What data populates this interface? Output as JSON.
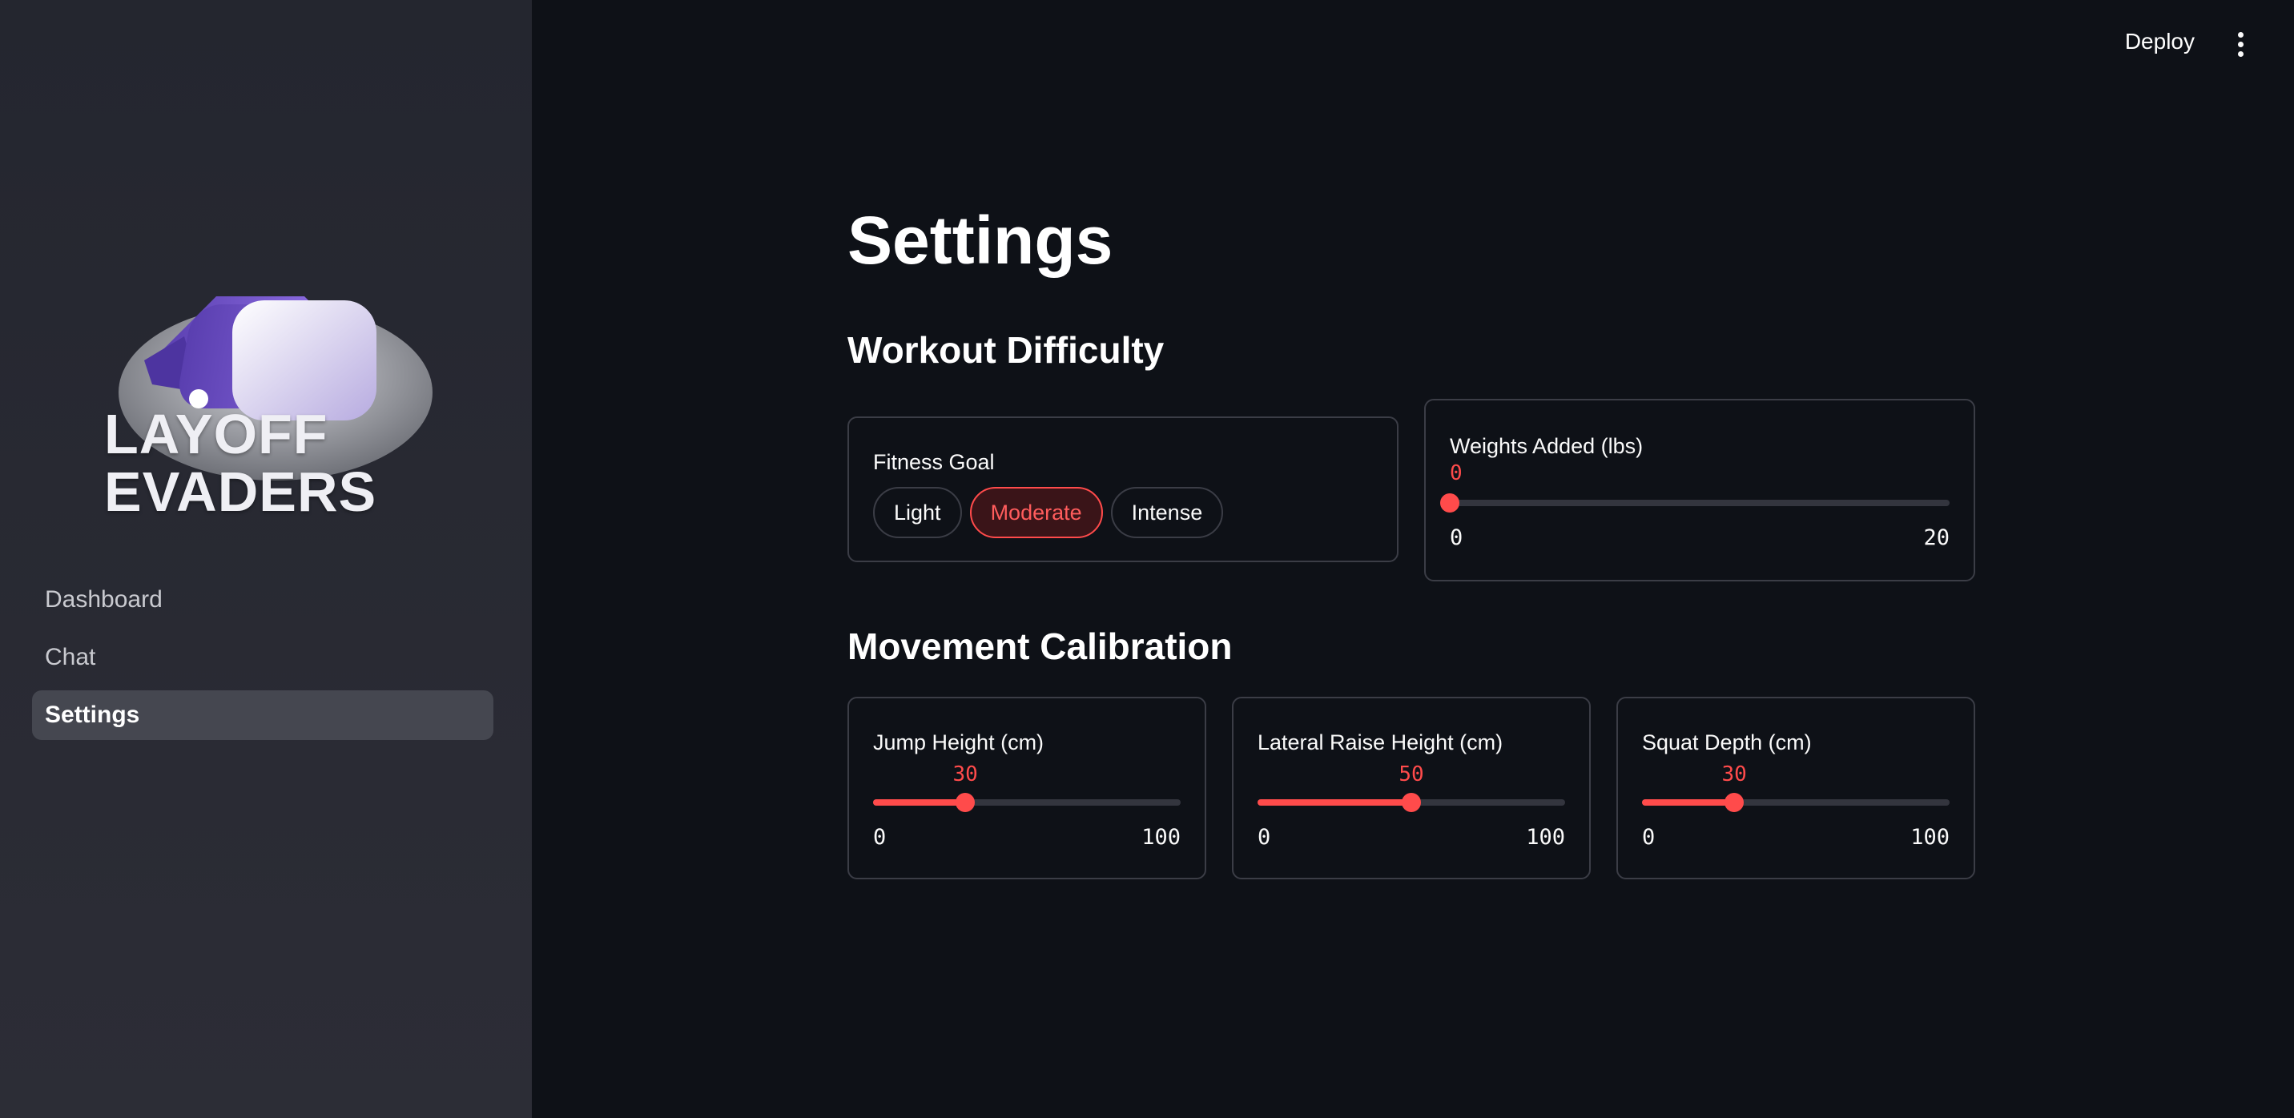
{
  "sidebar": {
    "logo_text": "LAYOFF EVADERS",
    "logo_lines": [
      "LAYOFF",
      "EVADERS"
    ],
    "nav": [
      {
        "label": "Dashboard",
        "active": false
      },
      {
        "label": "Chat",
        "active": false
      },
      {
        "label": "Settings",
        "active": true
      }
    ]
  },
  "header": {
    "deploy_label": "Deploy",
    "menu_icon": "vertical-ellipsis-icon"
  },
  "page": {
    "title": "Settings",
    "workout_section": "Workout Difficulty",
    "movement_section": "Movement Calibration"
  },
  "fitness_goal": {
    "label": "Fitness Goal",
    "options": [
      "Light",
      "Moderate",
      "Intense"
    ],
    "selected": "Moderate"
  },
  "weights": {
    "label": "Weights Added (lbs)",
    "value": 0,
    "min": 0,
    "max": 20,
    "value_text": "0",
    "min_text": "0",
    "max_text": "20"
  },
  "jump": {
    "label": "Jump Height (cm)",
    "value": 30,
    "min": 0,
    "max": 100,
    "value_text": "30",
    "min_text": "0",
    "max_text": "100"
  },
  "lateral": {
    "label": "Lateral Raise Height (cm)",
    "value": 50,
    "min": 0,
    "max": 100,
    "value_text": "50",
    "min_text": "0",
    "max_text": "100"
  },
  "squat": {
    "label": "Squat Depth (cm)",
    "value": 30,
    "min": 0,
    "max": 100,
    "value_text": "30",
    "min_text": "0",
    "max_text": "100"
  },
  "colors": {
    "accent": "#ff4b4b",
    "background": "#0e1117",
    "sidebar": "#262730"
  }
}
